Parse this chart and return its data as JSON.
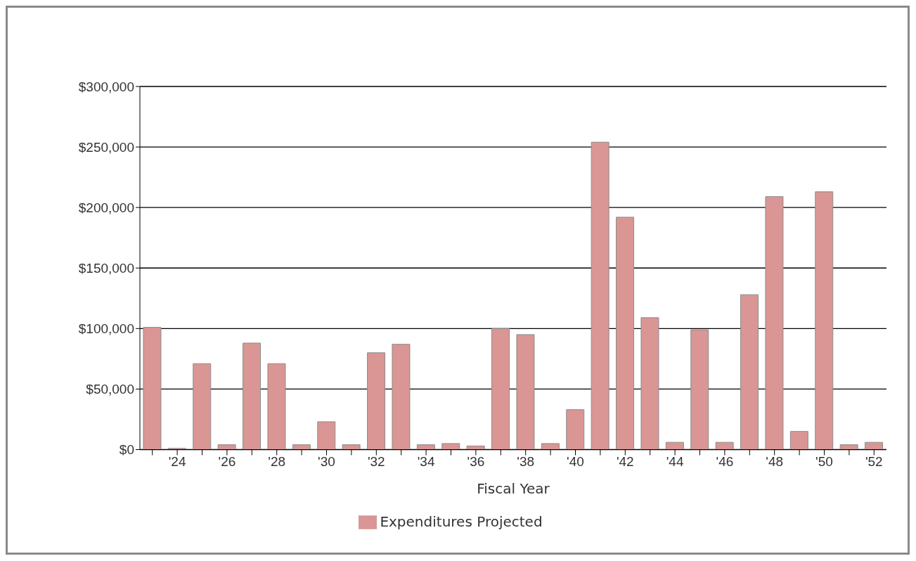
{
  "chart_data": {
    "type": "bar",
    "xlabel": "Fiscal Year",
    "categories": [
      null,
      "'24",
      null,
      "'26",
      null,
      "'28",
      null,
      "'30",
      null,
      "'32",
      null,
      "'34",
      null,
      "'36",
      null,
      "'38",
      null,
      "'40",
      null,
      "'42",
      null,
      "'44",
      null,
      "'46",
      null,
      "'48",
      null,
      "'50",
      null,
      "'52"
    ],
    "series": [
      {
        "name": "Expenditures Projected",
        "color": "#d99694",
        "values": [
          101000,
          1000,
          71000,
          4000,
          88000,
          71000,
          4000,
          23000,
          4000,
          80000,
          87000,
          4000,
          5000,
          3000,
          100000,
          95000,
          5000,
          33000,
          254000,
          192000,
          109000,
          6000,
          99000,
          6000,
          128000,
          209000,
          15000,
          213000,
          4000,
          6000
        ]
      }
    ],
    "ylim": [
      0,
      300000
    ],
    "yticks": [
      {
        "value": 0,
        "label": "$0"
      },
      {
        "value": 50000,
        "label": "$50,000"
      },
      {
        "value": 100000,
        "label": "$100,000"
      },
      {
        "value": 150000,
        "label": "$150,000"
      },
      {
        "value": 200000,
        "label": "$200,000"
      },
      {
        "value": 250000,
        "label": "$250,000"
      },
      {
        "value": 300000,
        "label": "$300,000"
      }
    ],
    "grid": "y",
    "legend": "bottom"
  }
}
